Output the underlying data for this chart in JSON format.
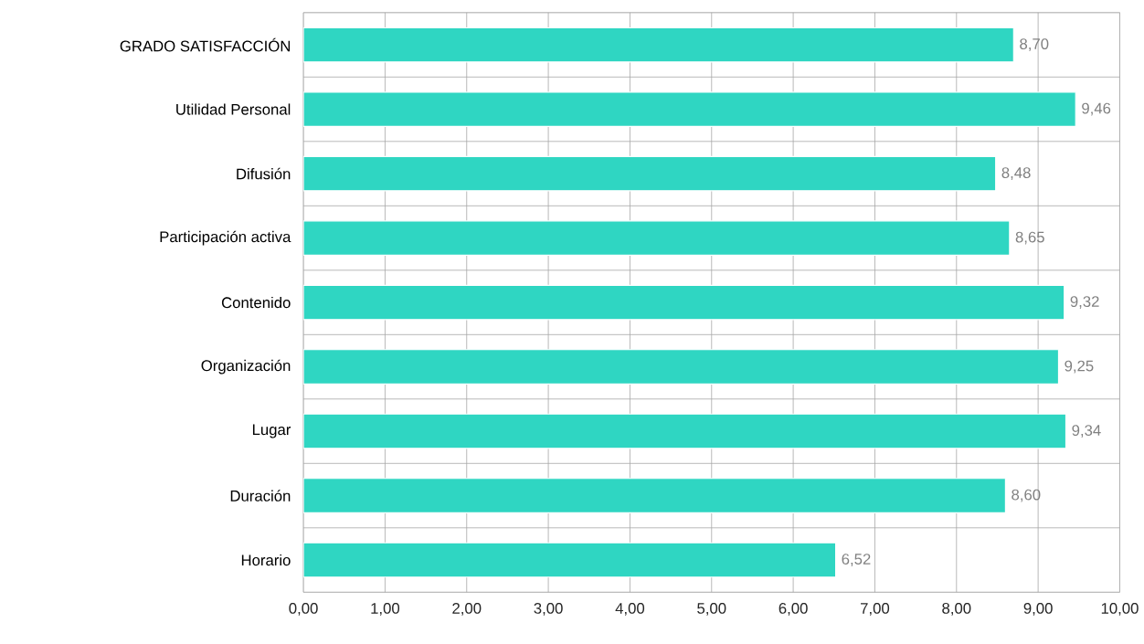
{
  "chart_data": {
    "type": "bar",
    "orientation": "horizontal",
    "categories": [
      "GRADO SATISFACCIÓN",
      "Utilidad Personal",
      "Difusión",
      "Participación activa",
      "Contenido",
      "Organización",
      "Lugar",
      "Duración",
      "Horario"
    ],
    "values": [
      8.7,
      9.46,
      8.48,
      8.65,
      9.32,
      9.25,
      9.34,
      8.6,
      6.52
    ],
    "value_labels": [
      "8,70",
      "9,46",
      "8,48",
      "8,65",
      "9,32",
      "9,25",
      "9,34",
      "8,60",
      "6,52"
    ],
    "color": "#2fd6c2",
    "xlim": [
      0,
      10
    ],
    "xticks": [
      {
        "value": 0,
        "label": "0,00"
      },
      {
        "value": 1,
        "label": "1,00"
      },
      {
        "value": 2,
        "label": "2,00"
      },
      {
        "value": 3,
        "label": "3,00"
      },
      {
        "value": 4,
        "label": "4,00"
      },
      {
        "value": 5,
        "label": "5,00"
      },
      {
        "value": 6,
        "label": "6,00"
      },
      {
        "value": 7,
        "label": "7,00"
      },
      {
        "value": 8,
        "label": "8,00"
      },
      {
        "value": 9,
        "label": "9,00"
      },
      {
        "value": 10,
        "label": "10,00"
      }
    ],
    "grid": true
  }
}
